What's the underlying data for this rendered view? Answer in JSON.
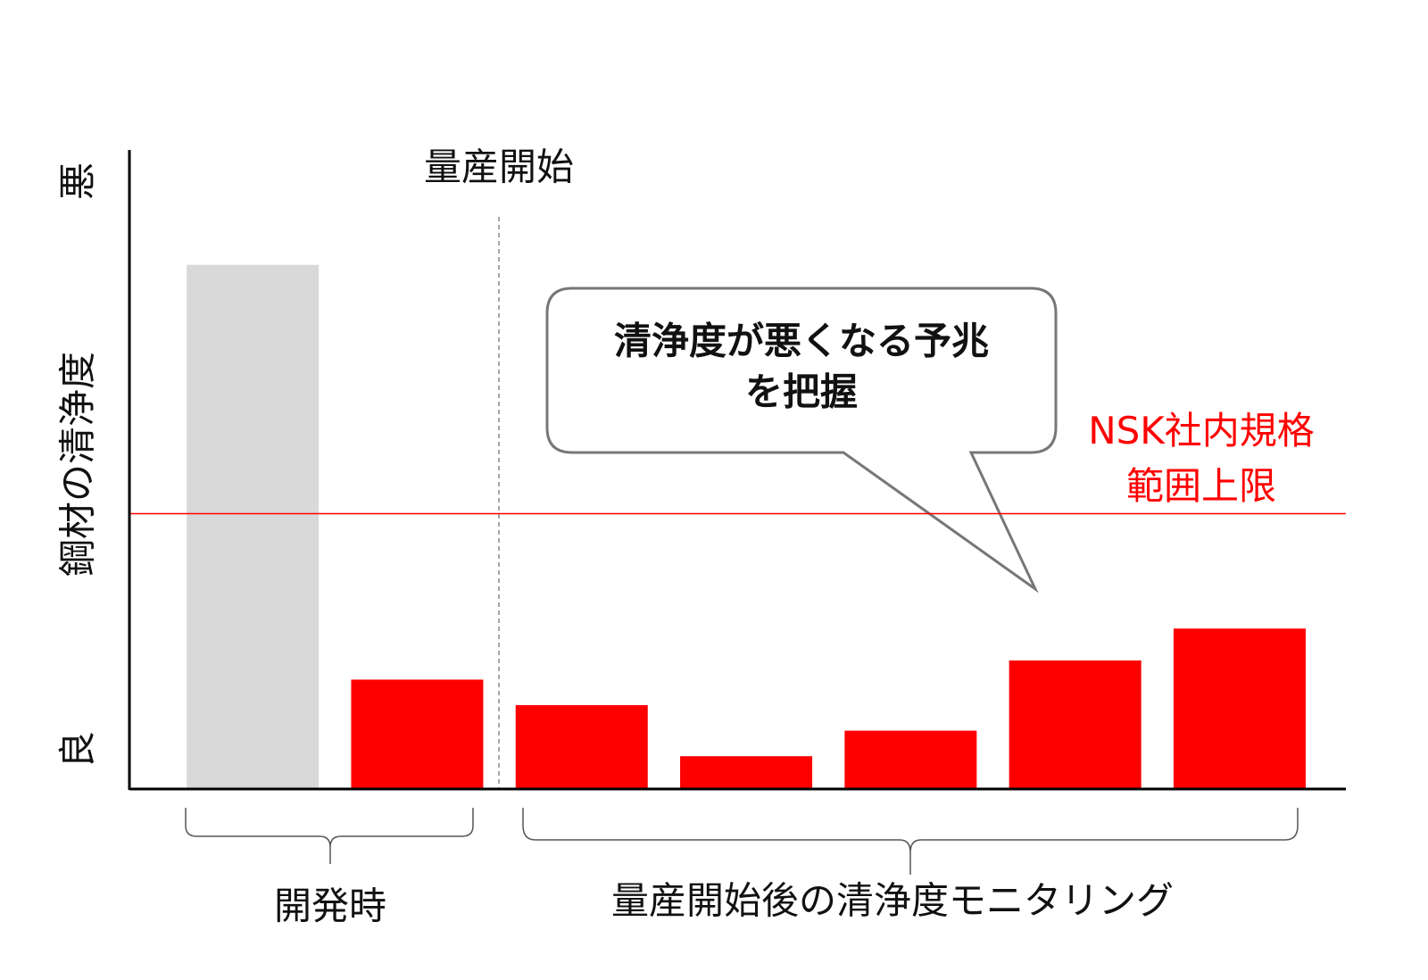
{
  "chart_data": {
    "type": "bar",
    "ylabel": "鋼材の清浄度",
    "y_top_label": "悪",
    "y_bottom_label": "良",
    "categories": [
      null,
      null,
      null,
      null,
      null,
      null,
      null
    ],
    "values": [
      82,
      17,
      13,
      5,
      9,
      20,
      25
    ],
    "colors": [
      "#d9d9d9",
      "#ff0000",
      "#ff0000",
      "#ff0000",
      "#ff0000",
      "#ff0000",
      "#ff0000"
    ],
    "ylim": [
      0,
      100
    ],
    "start_marker": "量産開始",
    "group_labels": [
      "開発時",
      "量産開始後の清浄度モニタリング"
    ],
    "threshold": {
      "value": 43,
      "label": [
        "NSK社内規格",
        "範囲上限"
      ],
      "color": "#ff0000"
    },
    "callout": [
      "清浄度が悪くなる予兆",
      "を把握"
    ]
  }
}
